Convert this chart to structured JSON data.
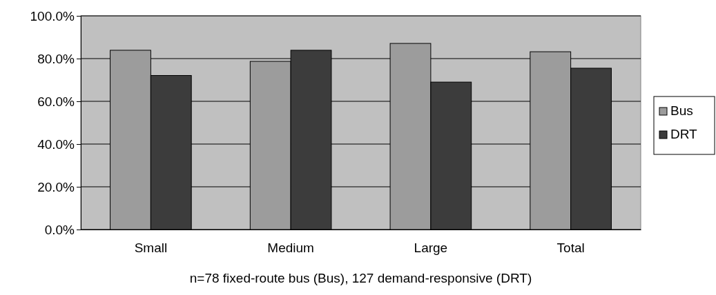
{
  "chart_data": {
    "type": "bar",
    "xlabel": "n=78 fixed-route bus (Bus), 127 demand-responsive (DRT)",
    "categories": [
      "Small",
      "Medium",
      "Large",
      "Total"
    ],
    "series": [
      {
        "name": "Bus",
        "color": "#9c9c9c",
        "values": [
          83.9,
          78.7,
          87.1,
          83.2
        ]
      },
      {
        "name": "DRT",
        "color": "#3c3c3c",
        "values": [
          72.1,
          83.9,
          69.0,
          75.5
        ]
      }
    ],
    "ylim": [
      0,
      100
    ],
    "yticks": [
      {
        "value": 0,
        "label": "0.0%"
      },
      {
        "value": 20,
        "label": "20.0%"
      },
      {
        "value": 40,
        "label": "40.0%"
      },
      {
        "value": 60,
        "label": "60.0%"
      },
      {
        "value": 80,
        "label": "80.0%"
      },
      {
        "value": 100,
        "label": "100.0%"
      }
    ],
    "grid": "y",
    "legend": "right"
  }
}
